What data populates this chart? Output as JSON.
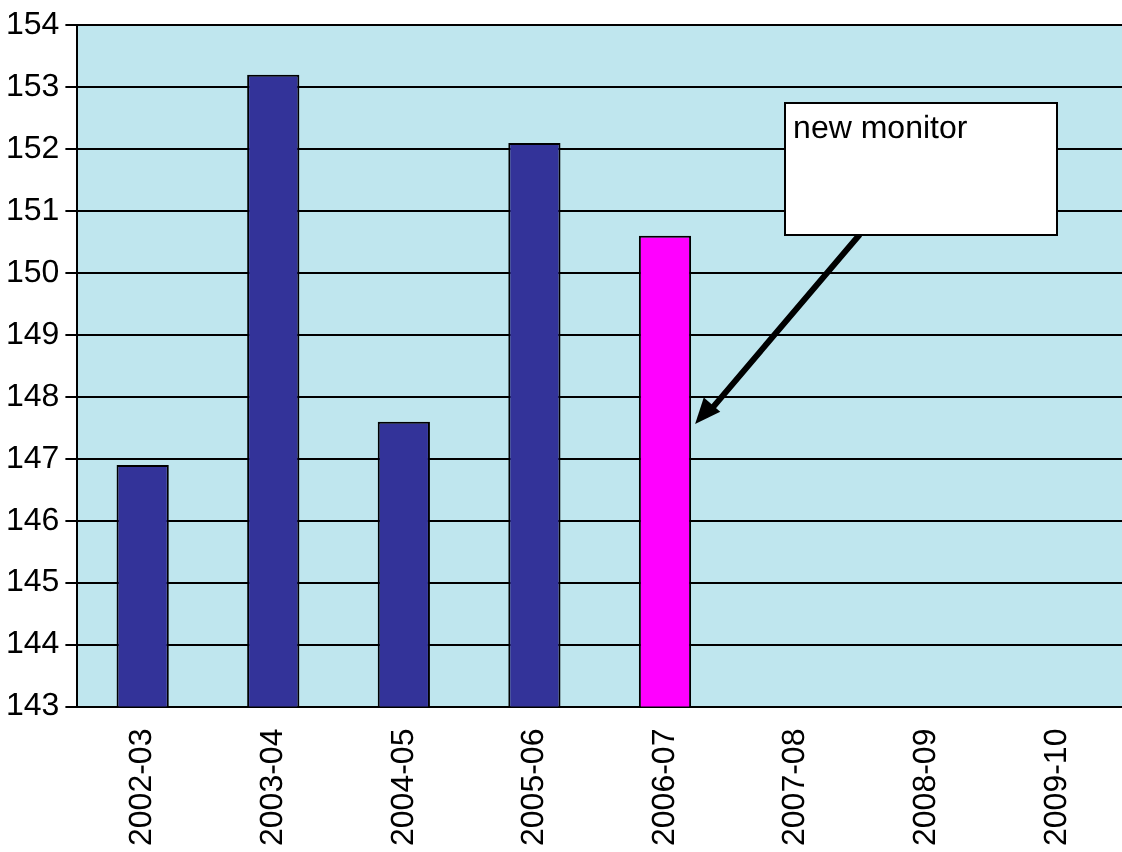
{
  "chart_data": {
    "type": "bar",
    "categories": [
      "2002-03",
      "2003-04",
      "2004-05",
      "2005-06",
      "2006-07",
      "2007-08",
      "2008-09",
      "2009-10"
    ],
    "values": [
      146.9,
      153.2,
      147.6,
      152.1,
      150.6,
      null,
      null,
      null
    ],
    "colors": [
      "#333399",
      "#333399",
      "#333399",
      "#333399",
      "#ff00ff",
      "#333399",
      "#333399",
      "#333399"
    ],
    "ylim": [
      143,
      154
    ],
    "yticks": [
      143,
      144,
      145,
      146,
      147,
      148,
      149,
      150,
      151,
      152,
      153,
      154
    ],
    "grid": "y",
    "legend": false,
    "annotations": [
      "new monitor"
    ]
  }
}
